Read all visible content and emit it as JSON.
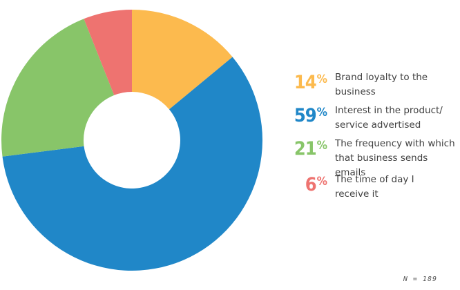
{
  "chart_data": {
    "type": "pie",
    "variant": "donut",
    "categories": [
      "Brand loyalty to the\nbusiness",
      "Interest in the product/\nservice advertised",
      "The frequency with which\nthat business sends emails",
      "The time of day I\nreceive it"
    ],
    "values": [
      14,
      59,
      21,
      6
    ],
    "value_labels": [
      "14",
      "59",
      "21",
      "6"
    ],
    "unit": "%",
    "colors": [
      "#FCBA4E",
      "#2087C8",
      "#88C569",
      "#EE7370"
    ],
    "legend_position": "right",
    "footnote": "N = 189"
  }
}
